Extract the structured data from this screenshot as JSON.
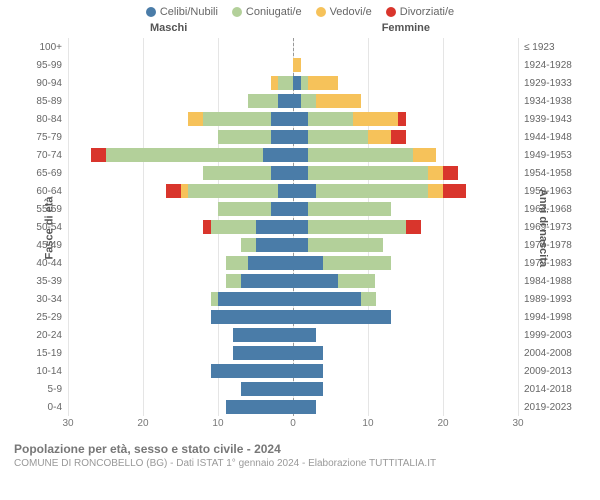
{
  "legend": [
    {
      "label": "Celibi/Nubili",
      "color": "#4a7ca8"
    },
    {
      "label": "Coniugati/e",
      "color": "#b3d09a"
    },
    {
      "label": "Vedovi/e",
      "color": "#f6c25a"
    },
    {
      "label": "Divorziati/e",
      "color": "#d9352c"
    }
  ],
  "columns": {
    "male": "Maschi",
    "female": "Femmine"
  },
  "axes": {
    "left_label": "Fasce di età",
    "right_label": "Anni di nascita",
    "xmax": 30,
    "xticks": [
      30,
      20,
      10,
      0,
      10,
      20,
      30
    ]
  },
  "colors": {
    "single": "#4a7ca8",
    "married": "#b3d09a",
    "widowed": "#f6c25a",
    "divorced": "#d9352c",
    "grid": "#e5e5e5",
    "center": "#999999",
    "bg": "#ffffff"
  },
  "rows": [
    {
      "age": "100+",
      "cohort": "≤ 1923",
      "m": {
        "s": 0,
        "m": 0,
        "w": 0,
        "d": 0
      },
      "f": {
        "s": 0,
        "m": 0,
        "w": 0,
        "d": 0
      }
    },
    {
      "age": "95-99",
      "cohort": "1924-1928",
      "m": {
        "s": 0,
        "m": 0,
        "w": 0,
        "d": 0
      },
      "f": {
        "s": 0,
        "m": 0,
        "w": 1,
        "d": 0
      }
    },
    {
      "age": "90-94",
      "cohort": "1929-1933",
      "m": {
        "s": 0,
        "m": 2,
        "w": 1,
        "d": 0
      },
      "f": {
        "s": 1,
        "m": 1,
        "w": 4,
        "d": 0
      }
    },
    {
      "age": "85-89",
      "cohort": "1934-1938",
      "m": {
        "s": 2,
        "m": 4,
        "w": 0,
        "d": 0
      },
      "f": {
        "s": 1,
        "m": 2,
        "w": 6,
        "d": 0
      }
    },
    {
      "age": "80-84",
      "cohort": "1939-1943",
      "m": {
        "s": 3,
        "m": 9,
        "w": 2,
        "d": 0
      },
      "f": {
        "s": 2,
        "m": 6,
        "w": 6,
        "d": 1
      }
    },
    {
      "age": "75-79",
      "cohort": "1944-1948",
      "m": {
        "s": 3,
        "m": 7,
        "w": 0,
        "d": 0
      },
      "f": {
        "s": 2,
        "m": 8,
        "w": 3,
        "d": 2
      }
    },
    {
      "age": "70-74",
      "cohort": "1949-1953",
      "m": {
        "s": 4,
        "m": 21,
        "w": 0,
        "d": 2
      },
      "f": {
        "s": 2,
        "m": 14,
        "w": 3,
        "d": 0
      }
    },
    {
      "age": "65-69",
      "cohort": "1954-1958",
      "m": {
        "s": 3,
        "m": 9,
        "w": 0,
        "d": 0
      },
      "f": {
        "s": 2,
        "m": 16,
        "w": 2,
        "d": 2
      }
    },
    {
      "age": "60-64",
      "cohort": "1959-1963",
      "m": {
        "s": 2,
        "m": 12,
        "w": 1,
        "d": 2
      },
      "f": {
        "s": 3,
        "m": 15,
        "w": 2,
        "d": 3
      }
    },
    {
      "age": "55-59",
      "cohort": "1964-1968",
      "m": {
        "s": 3,
        "m": 7,
        "w": 0,
        "d": 0
      },
      "f": {
        "s": 2,
        "m": 11,
        "w": 0,
        "d": 0
      }
    },
    {
      "age": "50-54",
      "cohort": "1969-1973",
      "m": {
        "s": 5,
        "m": 6,
        "w": 0,
        "d": 1
      },
      "f": {
        "s": 2,
        "m": 13,
        "w": 0,
        "d": 2
      }
    },
    {
      "age": "45-49",
      "cohort": "1974-1978",
      "m": {
        "s": 5,
        "m": 2,
        "w": 0,
        "d": 0
      },
      "f": {
        "s": 2,
        "m": 10,
        "w": 0,
        "d": 0
      }
    },
    {
      "age": "40-44",
      "cohort": "1979-1983",
      "m": {
        "s": 6,
        "m": 3,
        "w": 0,
        "d": 0
      },
      "f": {
        "s": 4,
        "m": 9,
        "w": 0,
        "d": 0
      }
    },
    {
      "age": "35-39",
      "cohort": "1984-1988",
      "m": {
        "s": 7,
        "m": 2,
        "w": 0,
        "d": 0
      },
      "f": {
        "s": 6,
        "m": 5,
        "w": 0,
        "d": 0
      }
    },
    {
      "age": "30-34",
      "cohort": "1989-1993",
      "m": {
        "s": 10,
        "m": 1,
        "w": 0,
        "d": 0
      },
      "f": {
        "s": 9,
        "m": 2,
        "w": 0,
        "d": 0
      }
    },
    {
      "age": "25-29",
      "cohort": "1994-1998",
      "m": {
        "s": 11,
        "m": 0,
        "w": 0,
        "d": 0
      },
      "f": {
        "s": 13,
        "m": 0,
        "w": 0,
        "d": 0
      }
    },
    {
      "age": "20-24",
      "cohort": "1999-2003",
      "m": {
        "s": 8,
        "m": 0,
        "w": 0,
        "d": 0
      },
      "f": {
        "s": 3,
        "m": 0,
        "w": 0,
        "d": 0
      }
    },
    {
      "age": "15-19",
      "cohort": "2004-2008",
      "m": {
        "s": 8,
        "m": 0,
        "w": 0,
        "d": 0
      },
      "f": {
        "s": 4,
        "m": 0,
        "w": 0,
        "d": 0
      }
    },
    {
      "age": "10-14",
      "cohort": "2009-2013",
      "m": {
        "s": 11,
        "m": 0,
        "w": 0,
        "d": 0
      },
      "f": {
        "s": 4,
        "m": 0,
        "w": 0,
        "d": 0
      }
    },
    {
      "age": "5-9",
      "cohort": "2014-2018",
      "m": {
        "s": 7,
        "m": 0,
        "w": 0,
        "d": 0
      },
      "f": {
        "s": 4,
        "m": 0,
        "w": 0,
        "d": 0
      }
    },
    {
      "age": "0-4",
      "cohort": "2019-2023",
      "m": {
        "s": 9,
        "m": 0,
        "w": 0,
        "d": 0
      },
      "f": {
        "s": 3,
        "m": 0,
        "w": 0,
        "d": 0
      }
    }
  ],
  "footer": {
    "title": "Popolazione per età, sesso e stato civile - 2024",
    "subtitle": "COMUNE DI RONCOBELLO (BG) - Dati ISTAT 1° gennaio 2024 - Elaborazione TUTTITALIA.IT"
  }
}
